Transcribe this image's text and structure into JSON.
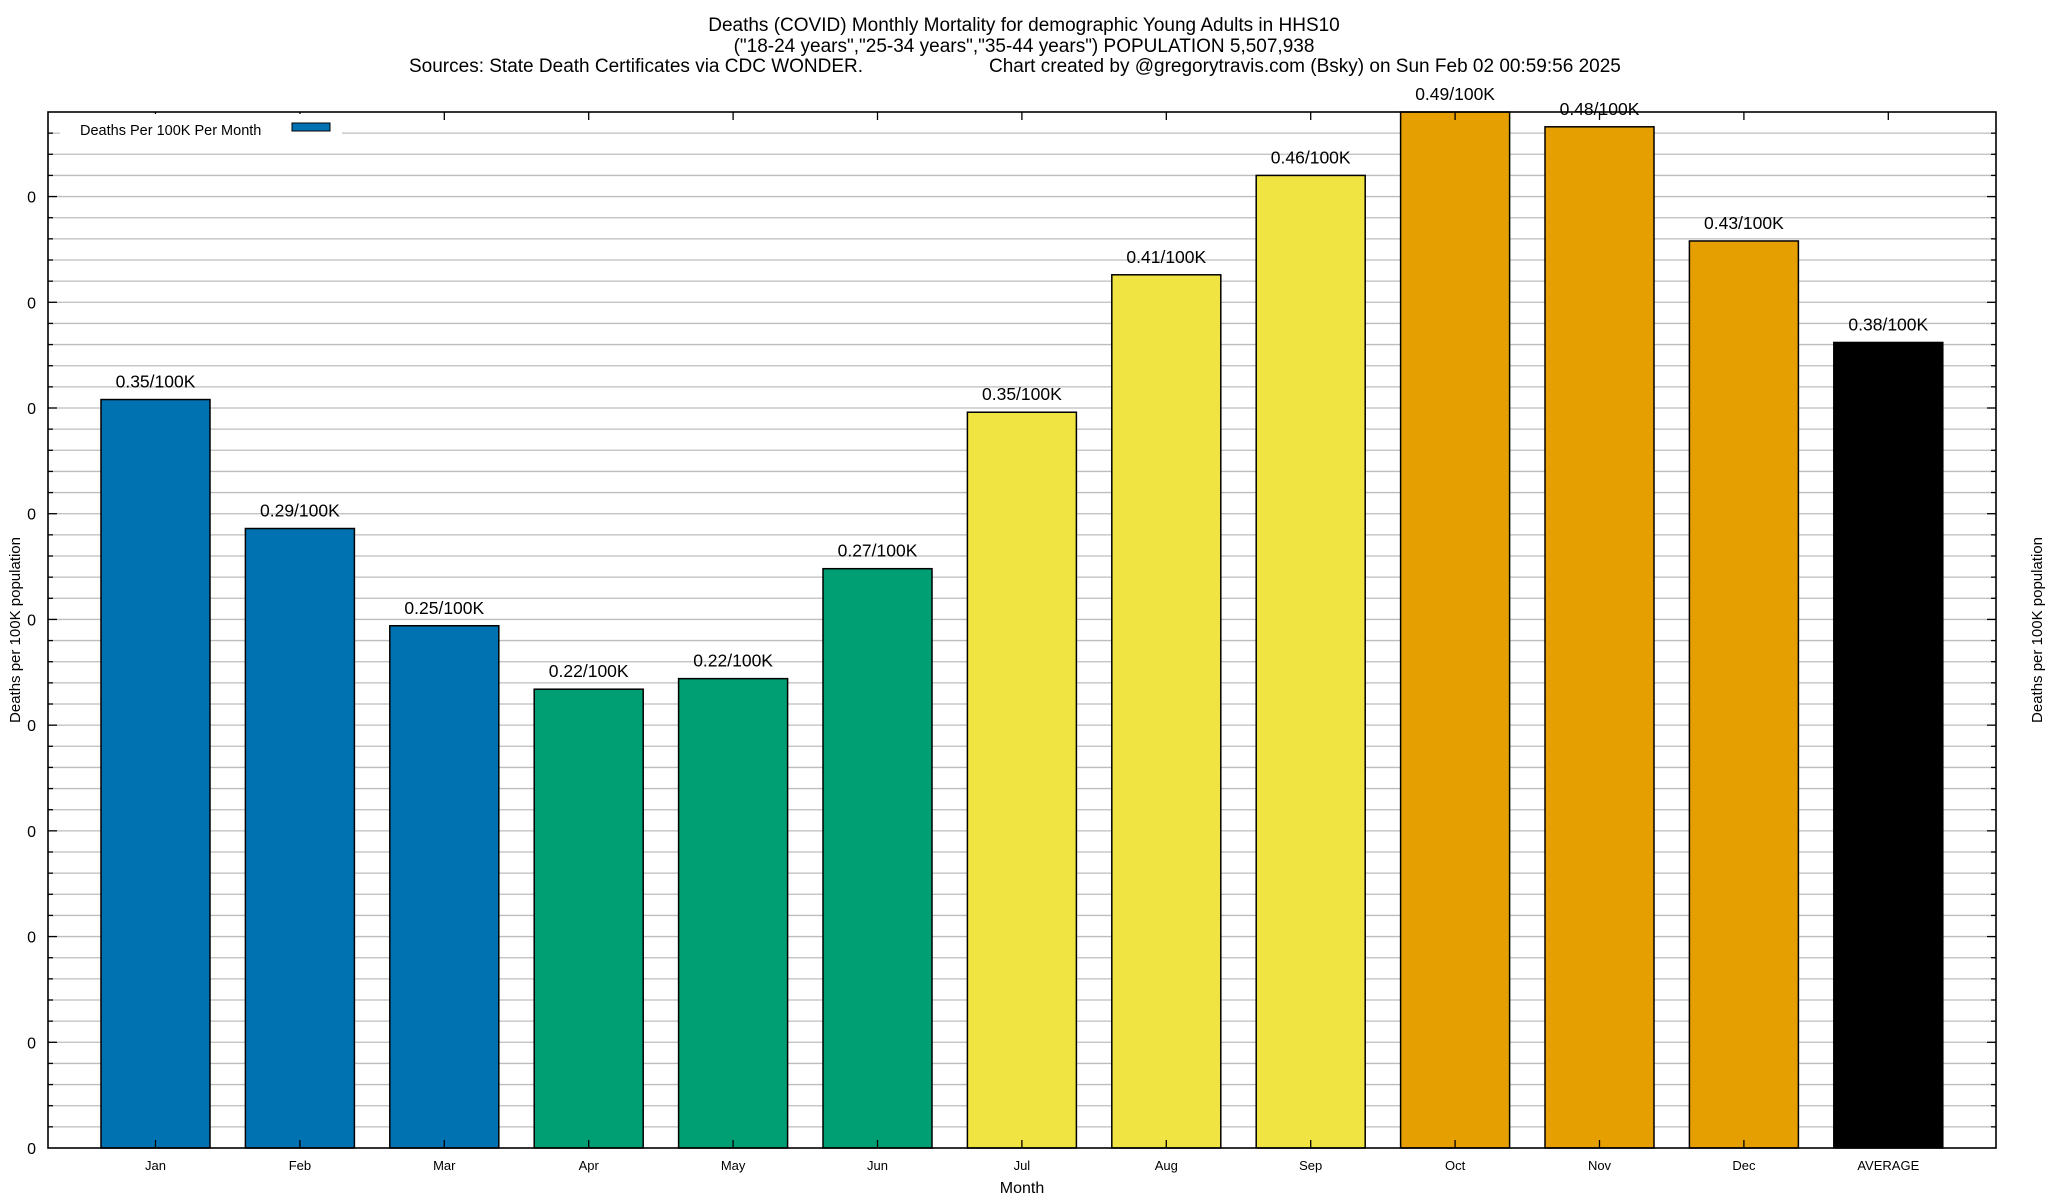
{
  "chart_data": {
    "type": "bar",
    "title_lines": [
      "Deaths (COVID) Monthly Mortality for demographic Young Adults in HHS10",
      "(\"18-24 years\",\"25-34 years\",\"35-44 years\") POPULATION 5,507,938"
    ],
    "sources": "Sources: State Death Certificates via CDC WONDER.",
    "credit": "Chart created by @gregorytravis.com (Bsky) on Sun Feb 02 00:59:56 2025",
    "xlabel": "Month",
    "ylabel": "Deaths per 100K population",
    "y2label": "Deaths per 100K population",
    "legend": {
      "label": "Deaths Per 100K Per Month",
      "color": "#0072B2",
      "position": "top-left"
    },
    "categories": [
      "Jan",
      "Feb",
      "Mar",
      "Apr",
      "May",
      "Jun",
      "Jul",
      "Aug",
      "Sep",
      "Oct",
      "Nov",
      "Dec",
      "AVERAGE"
    ],
    "values": [
      0.354,
      0.293,
      0.247,
      0.217,
      0.222,
      0.274,
      0.348,
      0.413,
      0.46,
      0.49,
      0.483,
      0.429,
      0.381
    ],
    "data_labels": [
      "0.35/100K",
      "0.29/100K",
      "0.25/100K",
      "0.22/100K",
      "0.22/100K",
      "0.27/100K",
      "0.35/100K",
      "0.41/100K",
      "0.46/100K",
      "0.49/100K",
      "0.48/100K",
      "0.43/100K",
      "0.38/100K"
    ],
    "colors": [
      "#0072B2",
      "#0072B2",
      "#0072B2",
      "#009E73",
      "#009E73",
      "#009E73",
      "#F0E442",
      "#F0E442",
      "#F0E442",
      "#E69F00",
      "#E69F00",
      "#E69F00",
      "#000000"
    ],
    "ylim": [
      0,
      0.49
    ],
    "y_major_step": 0.05,
    "y_minor_step": 0.01,
    "y_tick_labels": [
      "0",
      "0",
      "0",
      "0",
      "0",
      "0",
      "0",
      "0",
      "0",
      "0"
    ],
    "grid": true
  }
}
